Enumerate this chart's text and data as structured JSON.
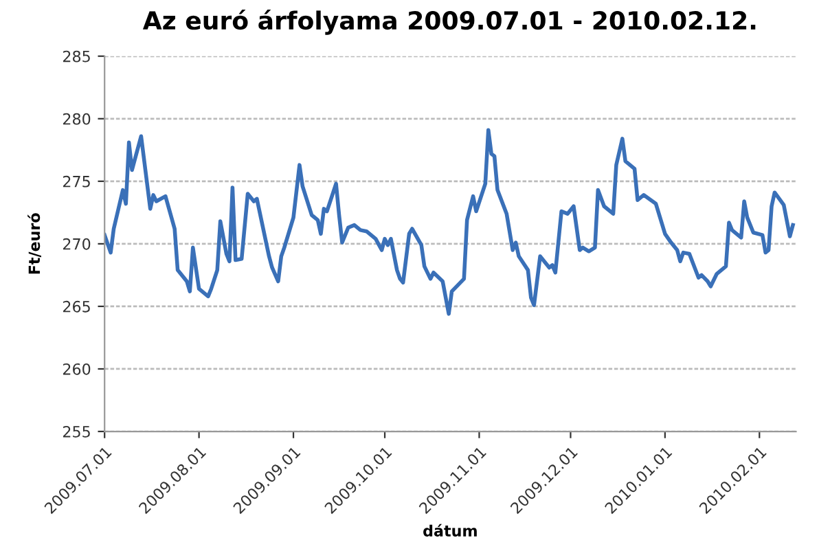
{
  "chart_data": {
    "type": "line",
    "title": "Az euró árfolyama 2009.07.01 - 2010.02.12.",
    "xlabel": "dátum",
    "ylabel": "Ft/euró",
    "x": [
      "2009-07-01",
      "2009-07-03",
      "2009-07-04",
      "2009-07-07",
      "2009-07-08",
      "2009-07-09",
      "2009-07-10",
      "2009-07-11",
      "2009-07-13",
      "2009-07-16",
      "2009-07-17",
      "2009-07-18",
      "2009-07-21",
      "2009-07-24",
      "2009-07-25",
      "2009-07-28",
      "2009-07-29",
      "2009-07-30",
      "2009-08-01",
      "2009-08-04",
      "2009-08-05",
      "2009-08-07",
      "2009-08-08",
      "2009-08-10",
      "2009-08-11",
      "2009-08-12",
      "2009-08-13",
      "2009-08-15",
      "2009-08-17",
      "2009-08-19",
      "2009-08-20",
      "2009-08-24",
      "2009-08-25",
      "2009-08-27",
      "2009-08-28",
      "2009-08-29",
      "2009-09-01",
      "2009-09-03",
      "2009-09-04",
      "2009-09-07",
      "2009-09-09",
      "2009-09-10",
      "2009-09-11",
      "2009-09-12",
      "2009-09-15",
      "2009-09-16",
      "2009-09-17",
      "2009-09-19",
      "2009-09-21",
      "2009-09-23",
      "2009-09-25",
      "2009-09-28",
      "2009-09-30",
      "2009-10-01",
      "2009-10-02",
      "2009-10-03",
      "2009-10-05",
      "2009-10-06",
      "2009-10-07",
      "2009-10-09",
      "2009-10-10",
      "2009-10-13",
      "2009-10-14",
      "2009-10-16",
      "2009-10-17",
      "2009-10-20",
      "2009-10-22",
      "2009-10-23",
      "2009-10-27",
      "2009-10-28",
      "2009-10-30",
      "2009-10-31",
      "2009-11-03",
      "2009-11-04",
      "2009-11-05",
      "2009-11-06",
      "2009-11-07",
      "2009-11-10",
      "2009-11-12",
      "2009-11-13",
      "2009-11-14",
      "2009-11-17",
      "2009-11-18",
      "2009-11-19",
      "2009-11-21",
      "2009-11-24",
      "2009-11-25",
      "2009-11-26",
      "2009-11-28",
      "2009-11-30",
      "2009-12-02",
      "2009-12-04",
      "2009-12-05",
      "2009-12-07",
      "2009-12-09",
      "2009-12-10",
      "2009-12-12",
      "2009-12-15",
      "2009-12-16",
      "2009-12-18",
      "2009-12-19",
      "2009-12-22",
      "2009-12-23",
      "2009-12-25",
      "2009-12-29",
      "2010-01-01",
      "2010-01-03",
      "2010-01-05",
      "2010-01-06",
      "2010-01-07",
      "2010-01-09",
      "2010-01-12",
      "2010-01-13",
      "2010-01-15",
      "2010-01-16",
      "2010-01-18",
      "2010-01-21",
      "2010-01-22",
      "2010-01-23",
      "2010-01-26",
      "2010-01-27",
      "2010-01-28",
      "2010-01-30",
      "2010-02-02",
      "2010-02-03",
      "2010-02-04",
      "2010-02-05",
      "2010-02-06",
      "2010-02-09",
      "2010-02-11",
      "2010-02-12"
    ],
    "series": [
      {
        "color": "#3a70b8",
        "values": [
          270.7,
          269.3,
          271.2,
          274.3,
          273.2,
          278.1,
          275.9,
          276.8,
          278.6,
          272.8,
          273.9,
          273.4,
          273.8,
          271.2,
          267.9,
          267.0,
          266.2,
          269.7,
          266.4,
          265.8,
          266.4,
          267.9,
          271.8,
          269.2,
          268.6,
          274.5,
          268.7,
          268.8,
          274.0,
          273.4,
          273.6,
          269.0,
          268.1,
          267.0,
          269.0,
          269.7,
          272.1,
          276.3,
          274.6,
          272.3,
          271.9,
          270.8,
          272.8,
          272.6,
          274.8,
          272.3,
          270.1,
          271.3,
          271.5,
          271.1,
          271.0,
          270.4,
          269.5,
          270.4,
          269.9,
          270.4,
          267.9,
          267.2,
          266.9,
          270.8,
          271.2,
          269.9,
          268.2,
          267.2,
          267.7,
          267.0,
          264.4,
          266.2,
          267.2,
          271.9,
          273.8,
          272.6,
          274.8,
          279.1,
          277.2,
          277.0,
          274.3,
          272.4,
          269.5,
          270.1,
          269.0,
          267.9,
          265.7,
          265.1,
          269.0,
          268.1,
          268.3,
          267.7,
          272.6,
          272.4,
          273.0,
          269.5,
          269.7,
          269.4,
          269.7,
          274.3,
          273.0,
          272.4,
          276.3,
          278.4,
          276.6,
          276.0,
          273.5,
          273.9,
          273.2,
          270.8,
          270.1,
          269.5,
          268.6,
          269.3,
          269.2,
          267.3,
          267.5,
          267.0,
          266.6,
          267.6,
          268.2,
          271.7,
          271.1,
          270.5,
          273.4,
          272.1,
          270.9,
          270.7,
          269.3,
          269.5,
          273.0,
          274.1,
          273.1,
          270.6,
          271.5
        ]
      }
    ],
    "xlim": [
      "2009-07-01",
      "2010-02-13"
    ],
    "xticks": [
      {
        "value": "2009-07-01",
        "label": "2009.07.01"
      },
      {
        "value": "2009-08-01",
        "label": "2009.08.01"
      },
      {
        "value": "2009-09-01",
        "label": "2009.09.01"
      },
      {
        "value": "2009-10-01",
        "label": "2009.10.01"
      },
      {
        "value": "2009-11-01",
        "label": "2009.11.01"
      },
      {
        "value": "2009-12-01",
        "label": "2009.12.01"
      },
      {
        "value": "2010-01-01",
        "label": "2010.01.01"
      },
      {
        "value": "2010-02-01",
        "label": "2010.02.01"
      }
    ],
    "ylim": [
      255,
      285
    ],
    "yticks": [
      255,
      260,
      265,
      270,
      275,
      280,
      285
    ],
    "grid": "y",
    "legend": false,
    "marker": "none",
    "line_style": "solid"
  }
}
